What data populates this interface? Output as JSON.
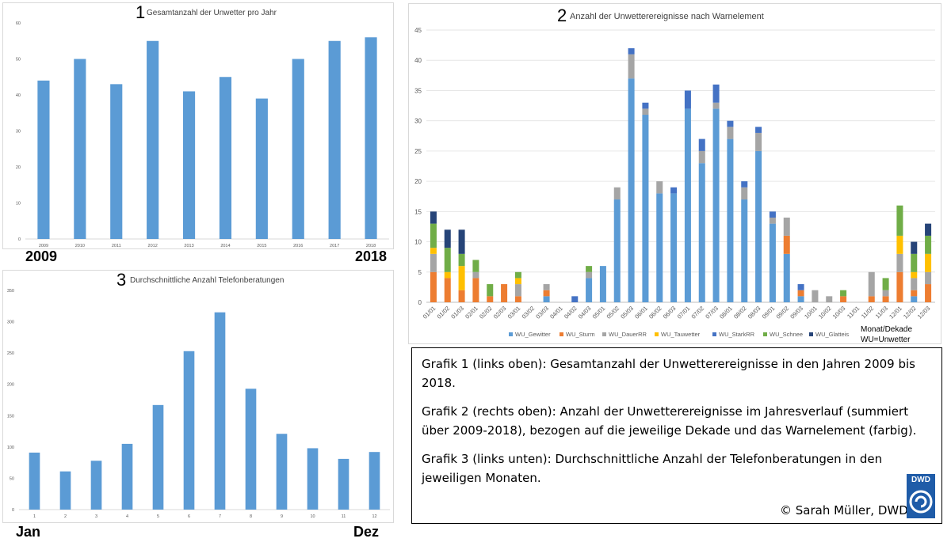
{
  "charts": {
    "c1": {
      "number": "1",
      "title": "Gesamtanzahl der Unwetter pro Jahr",
      "first_label": "2009",
      "last_label": "2018"
    },
    "c2": {
      "number": "2",
      "title": "Anzahl der Unwetterereignisse nach Warnelement"
    },
    "c3": {
      "number": "3",
      "title": "Durchschnittliche Anzahl Telefonberatungen",
      "first_label": "Jan",
      "last_label": "Dez"
    }
  },
  "month_label": {
    "line1": "Monat/Dekade",
    "line2": "WU=Unwetter"
  },
  "caption": {
    "p1": "Grafik 1 (links oben): Gesamtanzahl der Unwetterereignisse in den Jahren 2009 bis 2018.",
    "p2": "Grafik 2 (rechts oben): Anzahl der Unwetterereignisse im Jahresverlauf (summiert über 2009-2018), bezogen auf die jeweilige Dekade und das Warnelement (farbig).",
    "p3": "Grafik 3 (links unten): Durchschnittliche Anzahl der Telefonberatungen in den jeweiligen Monaten.",
    "copyright": "© Sarah Müller, DWD",
    "logo_text": "DWD"
  },
  "colors": {
    "bar": "#5b9bd5",
    "gewitter": "#5b9bd5",
    "sturm": "#ed7d31",
    "dauerrr": "#a5a5a5",
    "tauwetter": "#ffc000",
    "starkrr": "#4472c4",
    "schnee": "#70ad47",
    "glatteis": "#264478"
  },
  "chart_data": [
    {
      "type": "bar",
      "title": "Gesamtanzahl der Unwetter pro Jahr",
      "categories": [
        "2009",
        "2010",
        "2011",
        "2012",
        "2013",
        "2014",
        "2015",
        "2016",
        "2017",
        "2018"
      ],
      "values": [
        44,
        50,
        43,
        55,
        41,
        45,
        39,
        50,
        55,
        56
      ],
      "ylim": [
        0,
        60
      ],
      "yticks": [
        "0",
        "10",
        "20",
        "30",
        "40",
        "50",
        "60"
      ],
      "grid": false
    },
    {
      "type": "bar",
      "stacked": true,
      "title": "Anzahl der Unwetterereignisse nach Warnelement",
      "categories": [
        "01/01",
        "01/02",
        "01/03",
        "02/01",
        "02/02",
        "02/03",
        "03/01",
        "03/02",
        "03/03",
        "04/01",
        "04/02",
        "04/03",
        "05/01",
        "05/02",
        "05/03",
        "06/01",
        "06/02",
        "06/03",
        "07/01",
        "07/02",
        "07/03",
        "08/01",
        "08/02",
        "08/03",
        "09/01",
        "09/02",
        "09/03",
        "10/01",
        "10/02",
        "10/03",
        "11/01",
        "11/02",
        "11/03",
        "12/01",
        "12/02",
        "12/03"
      ],
      "ylim": [
        0,
        45
      ],
      "yticks": [
        "0",
        "5",
        "10",
        "15",
        "20",
        "25",
        "30",
        "35",
        "40",
        "45"
      ],
      "grid": true,
      "legend_position": "bottom",
      "series": [
        {
          "name": "WU_Gewitter",
          "values": [
            0,
            0,
            0,
            0,
            0,
            0,
            0,
            0,
            1,
            0,
            0,
            4,
            6,
            17,
            37,
            31,
            18,
            18,
            32,
            23,
            32,
            27,
            17,
            25,
            13,
            8,
            1,
            0,
            0,
            0,
            0,
            0,
            0,
            0,
            1,
            0
          ]
        },
        {
          "name": "WU_Sturm",
          "values": [
            5,
            4,
            2,
            4,
            1,
            3,
            1,
            0,
            1,
            0,
            0,
            0,
            0,
            0,
            0,
            0,
            0,
            0,
            0,
            0,
            0,
            0,
            0,
            0,
            0,
            3,
            1,
            0,
            0,
            1,
            0,
            1,
            1,
            5,
            1,
            3
          ]
        },
        {
          "name": "WU_DauerRR",
          "values": [
            3,
            0,
            0,
            1,
            0,
            0,
            2,
            0,
            1,
            0,
            0,
            1,
            0,
            2,
            4,
            1,
            2,
            0,
            0,
            2,
            1,
            2,
            2,
            3,
            1,
            3,
            0,
            2,
            1,
            0,
            0,
            4,
            1,
            3,
            2,
            2
          ]
        },
        {
          "name": "WU_Tauwetter",
          "values": [
            1,
            1,
            4,
            0,
            0,
            0,
            1,
            0,
            0,
            0,
            0,
            0,
            0,
            0,
            0,
            0,
            0,
            0,
            0,
            0,
            0,
            0,
            0,
            0,
            0,
            0,
            0,
            0,
            0,
            0,
            0,
            0,
            0,
            3,
            1,
            3
          ]
        },
        {
          "name": "WU_StarkRR",
          "values": [
            0,
            0,
            0,
            0,
            0,
            0,
            0,
            0,
            0,
            0,
            1,
            0,
            0,
            0,
            1,
            1,
            0,
            1,
            3,
            2,
            3,
            1,
            1,
            1,
            1,
            0,
            1,
            0,
            0,
            0,
            0,
            0,
            0,
            0,
            0,
            0
          ]
        },
        {
          "name": "WU_Schnee",
          "values": [
            4,
            4,
            2,
            2,
            2,
            0,
            1,
            0,
            0,
            0,
            0,
            1,
            0,
            0,
            0,
            0,
            0,
            0,
            0,
            0,
            0,
            0,
            0,
            0,
            0,
            0,
            0,
            0,
            0,
            1,
            0,
            0,
            2,
            5,
            3,
            3
          ]
        },
        {
          "name": "WU_Glatteis",
          "values": [
            2,
            3,
            4,
            0,
            0,
            0,
            0,
            0,
            0,
            0,
            0,
            0,
            0,
            0,
            0,
            0,
            0,
            0,
            0,
            0,
            0,
            0,
            0,
            0,
            0,
            0,
            0,
            0,
            0,
            0,
            0,
            0,
            0,
            0,
            2,
            2
          ]
        }
      ]
    },
    {
      "type": "bar",
      "title": "Durchschnittliche Anzahl Telefonberatungen",
      "categories": [
        "1",
        "2",
        "3",
        "4",
        "5",
        "6",
        "7",
        "8",
        "9",
        "10",
        "11",
        "12"
      ],
      "values": [
        91,
        61,
        78,
        105,
        167,
        253,
        315,
        193,
        121,
        98,
        81,
        92
      ],
      "ylim": [
        0,
        350
      ],
      "yticks": [
        "0",
        "50",
        "100",
        "150",
        "200",
        "250",
        "300",
        "350"
      ],
      "grid": false
    }
  ]
}
